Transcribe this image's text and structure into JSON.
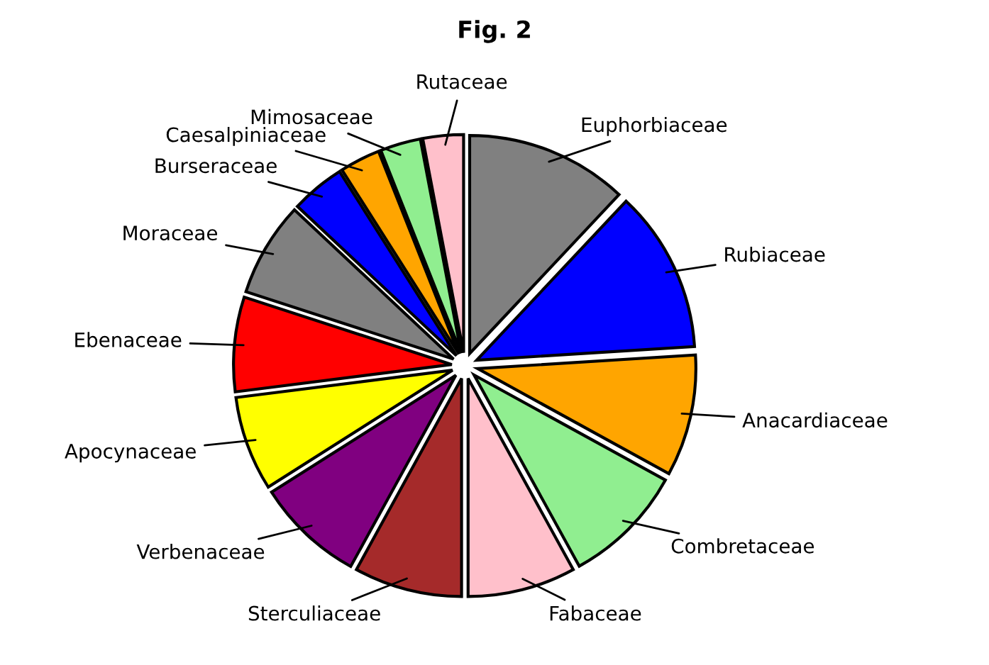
{
  "chart_data": {
    "type": "pie",
    "title": "Fig. 2",
    "categories": [
      "Euphorbiaceae",
      "Rubiaceae",
      "Anacardiaceae",
      "Combretaceae",
      "Fabaceae",
      "Sterculiaceae",
      "Verbenaceae",
      "Apocynaceae",
      "Ebenaceae",
      "Moraceae",
      "Burseraceae",
      "Caesalpiniaceae",
      "Mimosaceae",
      "Rutaceae"
    ],
    "values": [
      12,
      12,
      9,
      9,
      8,
      8,
      8,
      7,
      7,
      7,
      4,
      3,
      3,
      3
    ],
    "colors": [
      "#808080",
      "#0000ff",
      "#ffa500",
      "#90ee90",
      "#ffc0cb",
      "#a52a2a",
      "#800080",
      "#ffff00",
      "#ff0000",
      "#808080",
      "#0000ff",
      "#ffa500",
      "#90ee90",
      "#ffc0cb"
    ],
    "legend": false
  }
}
